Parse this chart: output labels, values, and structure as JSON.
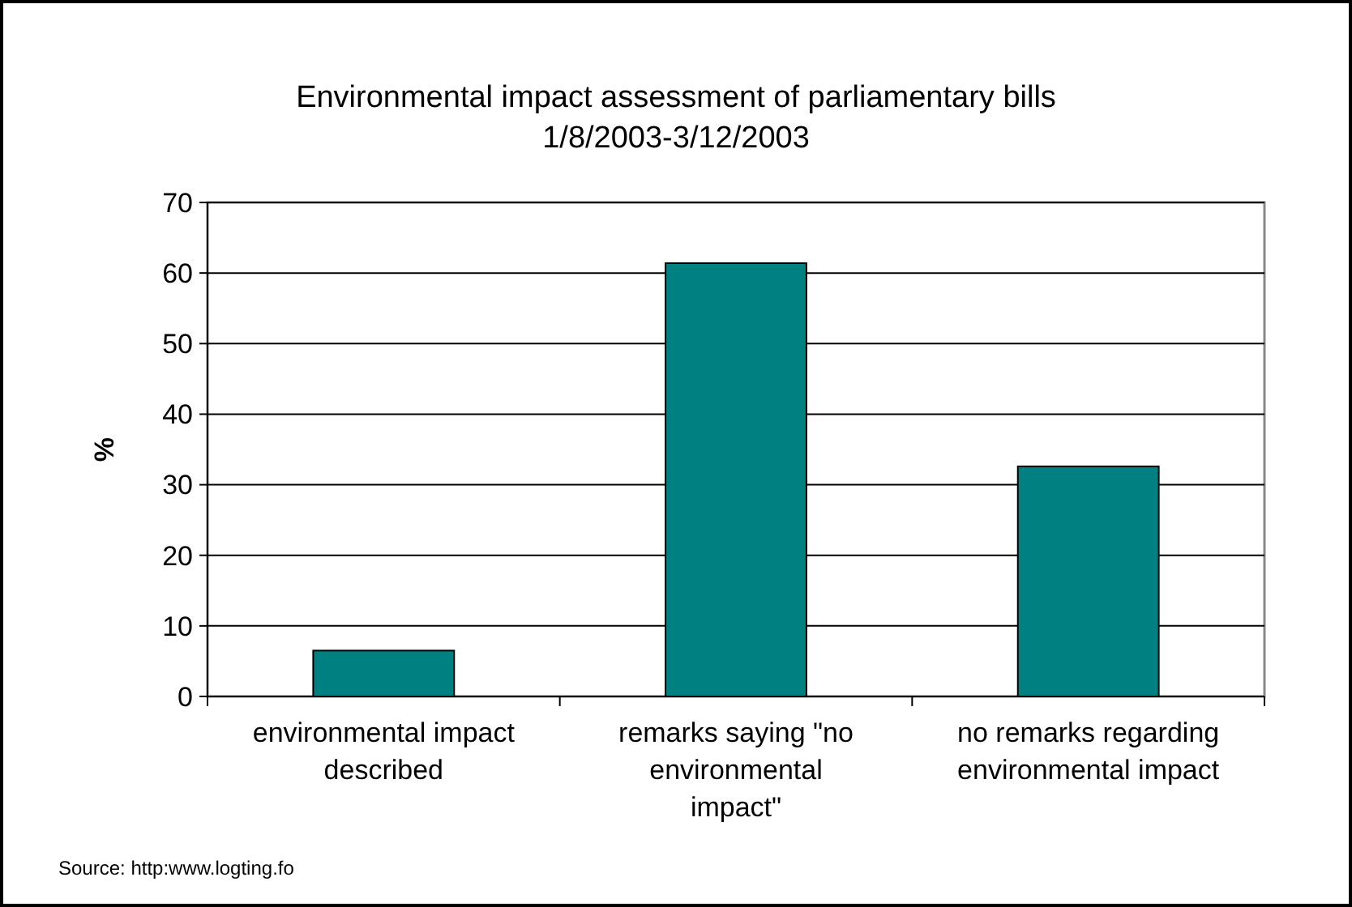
{
  "chart_data": {
    "type": "bar",
    "title": "Environmental impact assessment of parliamentary bills",
    "subtitle": "1/8/2003-3/12/2003",
    "ylabel": "%",
    "categories": [
      "environmental impact described",
      "remarks saying \"no environmental impact\"",
      "no remarks regarding environmental impact"
    ],
    "values": [
      6.5,
      61.4,
      32.6
    ],
    "color": "#008080",
    "ylim": [
      0,
      70
    ],
    "yticks": [
      0,
      10,
      20,
      30,
      40,
      50,
      60,
      70
    ],
    "grid": "y",
    "annotations": [
      "Source: http:www.logting.fo"
    ]
  }
}
